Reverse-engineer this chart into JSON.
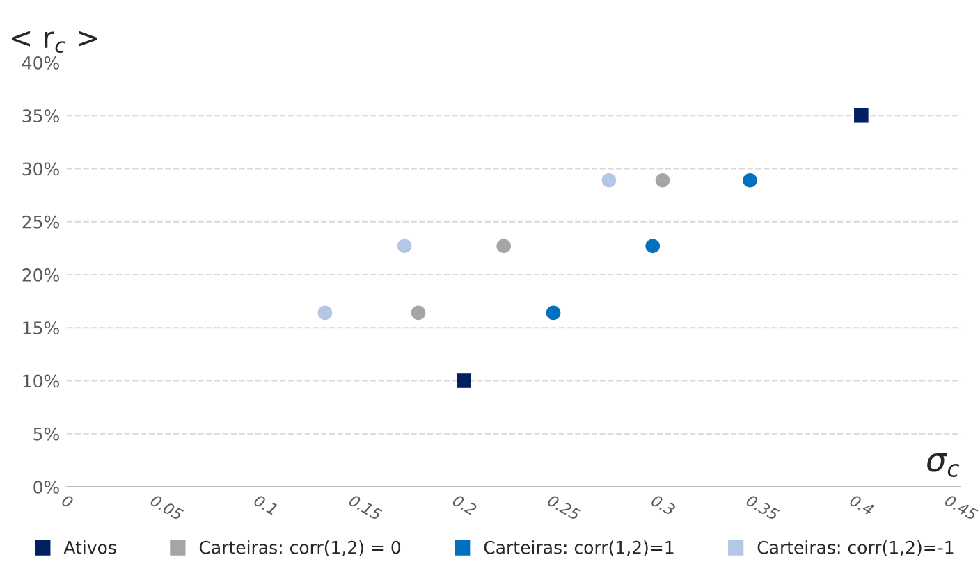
{
  "chart_data": {
    "type": "scatter",
    "xlabel": "σ$_{c}$",
    "ylabel": "< r$_{c}$ >",
    "series": [
      {
        "name": "Ativos",
        "color": "#002060",
        "marker": "square",
        "x": [
          0.2,
          0.4
        ],
        "values": [
          10,
          35
        ]
      },
      {
        "name": "Carteiras: corr(1,2) = 0",
        "color": "#a5a5a5",
        "marker": "circle",
        "x": [
          0.177,
          0.22,
          0.3
        ],
        "values": [
          16.4,
          22.7,
          28.9
        ]
      },
      {
        "name": "Carteiras: corr(1,2)=1",
        "color": "#0070c0",
        "marker": "circle",
        "x": [
          0.245,
          0.295,
          0.344
        ],
        "values": [
          16.4,
          22.7,
          28.9
        ]
      },
      {
        "name": "Carteiras: corr(1,2)=-1",
        "color": "#b4c7e7",
        "marker": "circle",
        "x": [
          0.13,
          0.17,
          0.273
        ],
        "values": [
          16.4,
          22.7,
          28.9
        ]
      }
    ],
    "xlim": [
      0,
      0.45
    ],
    "xticks": [
      0,
      0.05,
      0.1,
      0.15,
      0.2,
      0.25,
      0.3,
      0.35,
      0.4,
      0.45
    ],
    "ylim": [
      0,
      40
    ],
    "yticks": [
      {
        "value": 0,
        "label": "0%"
      },
      {
        "value": 5,
        "label": "5%"
      },
      {
        "value": 10,
        "label": "10%"
      },
      {
        "value": 15,
        "label": "15%"
      },
      {
        "value": 20,
        "label": "20%"
      },
      {
        "value": 25,
        "label": "25%"
      },
      {
        "value": 30,
        "label": "30%"
      },
      {
        "value": 35,
        "label": "35%"
      },
      {
        "value": 40,
        "label": "40%"
      }
    ],
    "grid": "y",
    "legend": "bottom"
  }
}
